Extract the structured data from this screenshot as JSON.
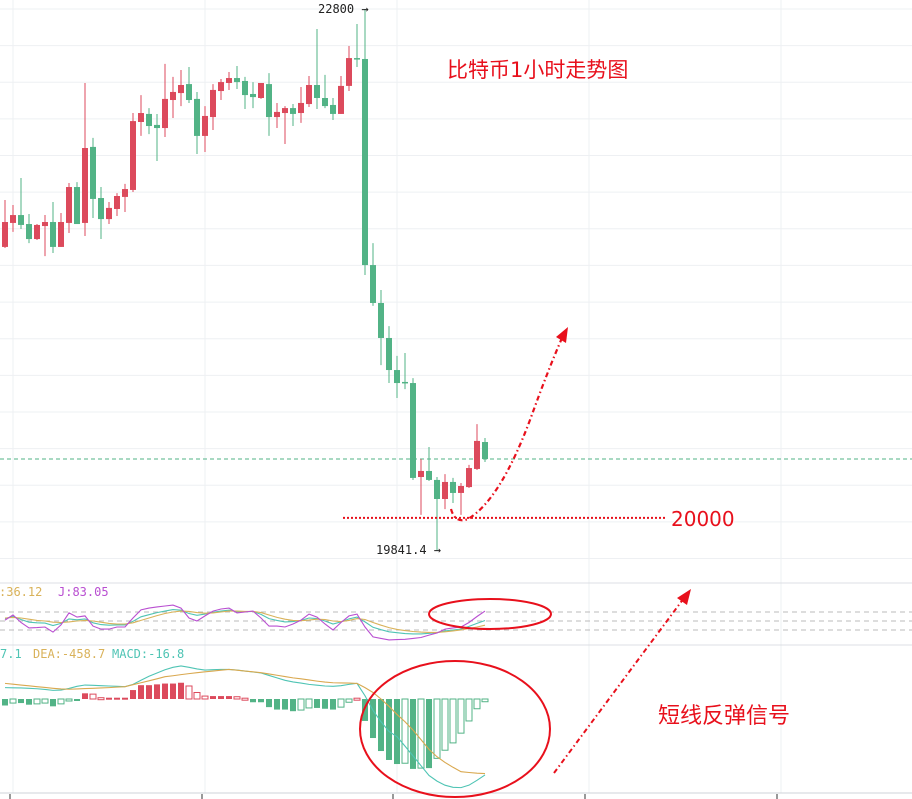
{
  "colors": {
    "up": "#dc4a5c",
    "down": "#52b386",
    "grid": "#eef0f3",
    "annotation": "#e8101c",
    "k": "#4fc4b4",
    "d": "#d9b25a",
    "j": "#b94fd1",
    "dif": "#4fc4b4",
    "dea": "#d9a84f"
  },
  "annotations": {
    "title": "比特币1小时走势图",
    "support_label": "20000",
    "signal_label": "短线反弹信号",
    "high_marker": "22800 →",
    "low_marker": "19841.4 →"
  },
  "kdj_legend": {
    "d_fragment": ":36.12",
    "j": "J:83.05"
  },
  "macd_legend": {
    "dif_fragment": "7.1",
    "dea": "DEA:-458.7",
    "macd": "MACD:-16.8"
  },
  "chart_data": [
    {
      "type": "candlestick",
      "title": "比特币1小时走势图",
      "interval": "1h",
      "ylim": [
        19700,
        22850
      ],
      "grid": true,
      "current_price": 20343,
      "support_level": 20000,
      "high": 22800,
      "low": 19841.4,
      "candles": [
        [
          21501,
          21757,
          21495,
          21637
        ],
        [
          21632,
          21730,
          21583,
          21675
        ],
        [
          21675,
          21877,
          21599,
          21621
        ],
        [
          21626,
          21681,
          21522,
          21544
        ],
        [
          21544,
          21626,
          21539,
          21621
        ],
        [
          21615,
          21675,
          21451,
          21637
        ],
        [
          21637,
          21746,
          21468,
          21501
        ],
        [
          21501,
          21686,
          21501,
          21637
        ],
        [
          21632,
          21850,
          21577,
          21828
        ],
        [
          21828,
          21855,
          21626,
          21626
        ],
        [
          21632,
          22396,
          21561,
          22041
        ],
        [
          22047,
          22096,
          21659,
          21763
        ],
        [
          21768,
          21828,
          21544,
          21653
        ],
        [
          21653,
          21746,
          21626,
          21714
        ],
        [
          21708,
          21795,
          21670,
          21779
        ],
        [
          21774,
          21845,
          21692,
          21817
        ],
        [
          21812,
          22232,
          21801,
          22188
        ],
        [
          22183,
          22330,
          22107,
          22232
        ],
        [
          22227,
          22259,
          22117,
          22161
        ],
        [
          22167,
          22227,
          21970,
          22150
        ],
        [
          22150,
          22500,
          22101,
          22309
        ],
        [
          22303,
          22429,
          22205,
          22347
        ],
        [
          22341,
          22467,
          22270,
          22385
        ],
        [
          22390,
          22483,
          22287,
          22303
        ],
        [
          22309,
          22347,
          22008,
          22107
        ],
        [
          22107,
          22270,
          22019,
          22216
        ],
        [
          22210,
          22390,
          22139,
          22358
        ],
        [
          22352,
          22418,
          22303,
          22401
        ],
        [
          22396,
          22456,
          22358,
          22423
        ],
        [
          22423,
          22489,
          22363,
          22401
        ],
        [
          22407,
          22429,
          22254,
          22330
        ],
        [
          22336,
          22401,
          22259,
          22319
        ],
        [
          22314,
          22396,
          22309,
          22396
        ],
        [
          22390,
          22450,
          22107,
          22210
        ],
        [
          22210,
          22287,
          22150,
          22238
        ],
        [
          22232,
          22270,
          22063,
          22259
        ],
        [
          22259,
          22281,
          22161,
          22227
        ],
        [
          22232,
          22374,
          22178,
          22287
        ],
        [
          22281,
          22434,
          22265,
          22385
        ],
        [
          22385,
          22691,
          22254,
          22314
        ],
        [
          22314,
          22440,
          22259,
          22270
        ],
        [
          22276,
          22314,
          22194,
          22227
        ],
        [
          22227,
          22434,
          22227,
          22380
        ],
        [
          22380,
          22598,
          22352,
          22532
        ],
        [
          22532,
          22718,
          22483,
          22527
        ],
        [
          22527,
          22800,
          21348,
          21402
        ],
        [
          21402,
          21522,
          21179,
          21195
        ],
        [
          21195,
          21266,
          20856,
          21004
        ],
        [
          21004,
          21069,
          20758,
          20829
        ],
        [
          20829,
          20906,
          20676,
          20758
        ],
        [
          20764,
          20922,
          20725,
          20758
        ],
        [
          20758,
          20785,
          20229,
          20240
        ],
        [
          20245,
          20343,
          20038,
          20278
        ],
        [
          20278,
          20409,
          20223,
          20229
        ],
        [
          20229,
          20245,
          19841.4,
          20125
        ],
        [
          20125,
          20261,
          20070,
          20218
        ],
        [
          20218,
          20240,
          20103,
          20158
        ],
        [
          20158,
          20212,
          20038,
          20196
        ],
        [
          20190,
          20311,
          20185,
          20294
        ],
        [
          20289,
          20534,
          20283,
          20442
        ],
        [
          20436,
          20458,
          20327,
          20343
        ]
      ]
    },
    {
      "type": "line",
      "indicator": "KDJ",
      "reference_levels": [
        80,
        50,
        20
      ],
      "series": [
        {
          "name": "K",
          "values": [
            58,
            65,
            55,
            46,
            44,
            43,
            35,
            42,
            57,
            54,
            57,
            44,
            38,
            36,
            37,
            37,
            49,
            64,
            71,
            78,
            83,
            88,
            86,
            75,
            69,
            73,
            79,
            83,
            86,
            81,
            81,
            82,
            72,
            58,
            52,
            47,
            48,
            52,
            60,
            58,
            50,
            40,
            47,
            57,
            63,
            47,
            29,
            21,
            14,
            11,
            8,
            7,
            7,
            9,
            11,
            17,
            20,
            23,
            32,
            42,
            51.76
          ]
        },
        {
          "name": "D",
          "values": [
            60,
            62,
            60,
            56,
            52,
            50,
            46,
            45,
            47,
            50,
            52,
            50,
            46,
            42,
            40,
            40,
            44,
            52,
            60,
            68,
            75,
            80,
            83,
            82,
            78,
            76,
            77,
            80,
            83,
            83,
            82,
            82,
            78,
            70,
            62,
            56,
            52,
            51,
            53,
            56,
            55,
            50,
            48,
            52,
            58,
            55,
            45,
            36,
            28,
            22,
            18,
            15,
            13,
            12,
            12,
            14,
            17,
            20,
            25,
            30,
            36.12
          ]
        },
        {
          "name": "J",
          "values": [
            53,
            70,
            45,
            27,
            28,
            30,
            13,
            37,
            77,
            63,
            67,
            33,
            23,
            23,
            30,
            30,
            60,
            87,
            93,
            97,
            100,
            103,
            93,
            60,
            50,
            67,
            83,
            90,
            93,
            77,
            80,
            83,
            60,
            33,
            33,
            30,
            40,
            53,
            73,
            63,
            40,
            20,
            45,
            67,
            73,
            30,
            -3,
            -8,
            -13,
            -12,
            -11,
            -8,
            -5,
            3,
            10,
            23,
            27,
            30,
            45,
            65,
            83.05
          ]
        }
      ]
    },
    {
      "type": "bar+line",
      "indicator": "MACD",
      "series": [
        {
          "name": "MACD",
          "values": [
            -40,
            -25,
            -25,
            -35,
            -30,
            -25,
            -45,
            -30,
            -5,
            -5,
            35,
            30,
            8,
            8,
            8,
            8,
            55,
            85,
            85,
            90,
            95,
            95,
            100,
            80,
            40,
            18,
            18,
            18,
            18,
            14,
            5,
            -20,
            -20,
            -50,
            -65,
            -65,
            -75,
            -68,
            -55,
            -55,
            -60,
            -65,
            -50,
            -20,
            5,
            -135,
            -240,
            -320,
            -375,
            -400,
            -395,
            -430,
            -425,
            -425,
            -365,
            -315,
            -270,
            -210,
            -135,
            -60,
            -16.8
          ]
        },
        {
          "name": "DIF",
          "values": [
            70,
            69,
            68,
            66,
            63,
            59,
            53,
            55,
            65,
            78,
            86,
            84,
            82,
            80,
            78,
            76,
            90,
            115,
            140,
            160,
            180,
            195,
            203,
            195,
            185,
            178,
            180,
            182,
            182,
            178,
            172,
            166,
            160,
            145,
            130,
            115,
            105,
            98,
            90,
            85,
            80,
            78,
            82,
            90,
            96,
            20,
            -70,
            -140,
            -200,
            -232,
            -290,
            -350,
            -410,
            -470,
            -505,
            -530,
            -543,
            -545,
            -530,
            -500,
            -467.1
          ]
        },
        {
          "name": "DEA",
          "values": [
            96,
            91,
            86,
            81,
            76,
            71,
            66,
            62,
            60,
            62,
            64,
            66,
            68,
            70,
            73,
            76,
            88,
            100,
            112,
            124,
            137,
            143,
            150,
            156,
            162,
            167,
            172,
            177,
            182,
            177,
            172,
            167,
            162,
            154,
            146,
            138,
            130,
            124,
            117,
            110,
            104,
            100,
            99,
            98,
            96,
            70,
            40,
            0,
            -45,
            -95,
            -140,
            -191,
            -250,
            -310,
            -355,
            -390,
            -420,
            -447,
            -452,
            -456,
            -458.7
          ]
        }
      ]
    }
  ]
}
